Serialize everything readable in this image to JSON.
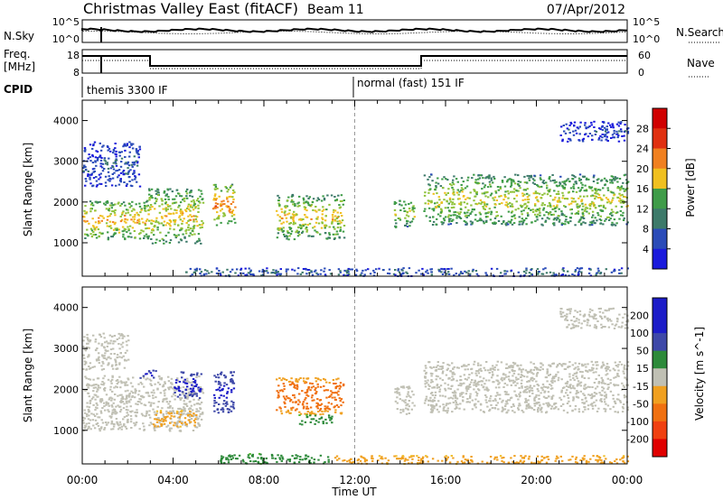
{
  "header": {
    "station": "Christmas Valley East (fitACF)",
    "beam": "Beam 11",
    "date": "07/Apr/2012"
  },
  "nsky_panel": {
    "left_label": "N.Sky",
    "right_label": "N.Search",
    "ticks_left": [
      "10^5",
      "10^0"
    ],
    "ticks_right": [
      "10^5",
      "10^0"
    ]
  },
  "freq_panel": {
    "left_label_1": "Freq.",
    "left_label_2": "[MHz]",
    "right_label": "Nave",
    "ticks_left": [
      "18",
      "8"
    ],
    "ticks_right": [
      "60",
      "0"
    ]
  },
  "cpid": {
    "label": "CPID",
    "modes": [
      {
        "name": "themis 3300 IF",
        "start_hour": 0
      },
      {
        "name": "normal (fast) 151 IF",
        "start_hour": 12
      }
    ]
  },
  "chart_data": [
    {
      "type": "heatmap",
      "panel": "power",
      "ylabel": "Slant Range [km]",
      "xlabel": "",
      "xlim": [
        0,
        24
      ],
      "ylim": [
        180,
        4500
      ],
      "yticks": [
        "1000",
        "2000",
        "3000",
        "4000"
      ],
      "colorbar": {
        "label": "Power [dB]",
        "ticks": [
          "28",
          "24",
          "20",
          "16",
          "12",
          "8",
          "4"
        ],
        "range": [
          0,
          32
        ]
      },
      "echo_regions": [
        {
          "t0": 0.0,
          "t1": 2.9,
          "r0": 1100,
          "r1": 2050,
          "level": 22
        },
        {
          "t0": 2.9,
          "t1": 5.3,
          "r0": 1000,
          "r1": 2350,
          "level": 20
        },
        {
          "t0": 5.7,
          "t1": 6.7,
          "r0": 1450,
          "r1": 2450,
          "level": 24
        },
        {
          "t0": 8.5,
          "t1": 11.5,
          "r0": 1100,
          "r1": 2200,
          "level": 20
        },
        {
          "t0": 13.7,
          "t1": 14.6,
          "r0": 1400,
          "r1": 2100,
          "level": 18
        },
        {
          "t0": 15.0,
          "t1": 24.0,
          "r0": 1450,
          "r1": 2700,
          "level": 18
        },
        {
          "t0": 0.0,
          "t1": 2.5,
          "r0": 2400,
          "r1": 3500,
          "level": 6
        },
        {
          "t0": 21.0,
          "t1": 24.0,
          "r0": 3500,
          "r1": 4000,
          "level": 5
        },
        {
          "t0": 4.5,
          "t1": 24.0,
          "r0": 200,
          "r1": 400,
          "level": 8
        }
      ]
    },
    {
      "type": "heatmap",
      "panel": "velocity",
      "ylabel": "Slant Range [km]",
      "xlabel": "Time UT",
      "xlim": [
        0,
        24
      ],
      "ylim": [
        180,
        4500
      ],
      "xticks": [
        "00:00",
        "04:00",
        "08:00",
        "12:00",
        "16:00",
        "20:00",
        "00:00"
      ],
      "yticks": [
        "1000",
        "2000",
        "3000",
        "4000"
      ],
      "colorbar": {
        "label": "Velocity [m s^-1]",
        "ticks": [
          "200",
          "100",
          "50",
          "15",
          "-15",
          "-50",
          "-100",
          "-200"
        ],
        "range": [
          -250,
          250
        ]
      },
      "echo_regions": [
        {
          "t0": 0.0,
          "t1": 5.3,
          "r0": 1000,
          "r1": 2350,
          "level": 0
        },
        {
          "t0": 3.0,
          "t1": 5.0,
          "r0": 1100,
          "r1": 1500,
          "level": -60
        },
        {
          "t0": 4.0,
          "t1": 5.2,
          "r0": 1800,
          "r1": 2450,
          "level": 200
        },
        {
          "t0": 5.7,
          "t1": 6.7,
          "r0": 1450,
          "r1": 2450,
          "level": 180
        },
        {
          "t0": 2.5,
          "t1": 3.2,
          "r0": 2300,
          "r1": 2500,
          "level": 200
        },
        {
          "t0": 8.5,
          "t1": 11.5,
          "r0": 1400,
          "r1": 2300,
          "level": -120
        },
        {
          "t0": 9.5,
          "t1": 11.0,
          "r0": 1150,
          "r1": 1400,
          "level": 60
        },
        {
          "t0": 13.7,
          "t1": 14.6,
          "r0": 1400,
          "r1": 2100,
          "level": 0
        },
        {
          "t0": 15.0,
          "t1": 24.0,
          "r0": 1450,
          "r1": 2700,
          "level": 0
        },
        {
          "t0": 0.0,
          "t1": 2.0,
          "r0": 2500,
          "r1": 3400,
          "level": -10
        },
        {
          "t0": 21.0,
          "t1": 24.0,
          "r0": 3500,
          "r1": 4000,
          "level": -10
        },
        {
          "t0": 6.0,
          "t1": 11.0,
          "r0": 200,
          "r1": 450,
          "level": 60
        },
        {
          "t0": 11.0,
          "t1": 24.0,
          "r0": 200,
          "r1": 400,
          "level": -60
        }
      ]
    }
  ]
}
